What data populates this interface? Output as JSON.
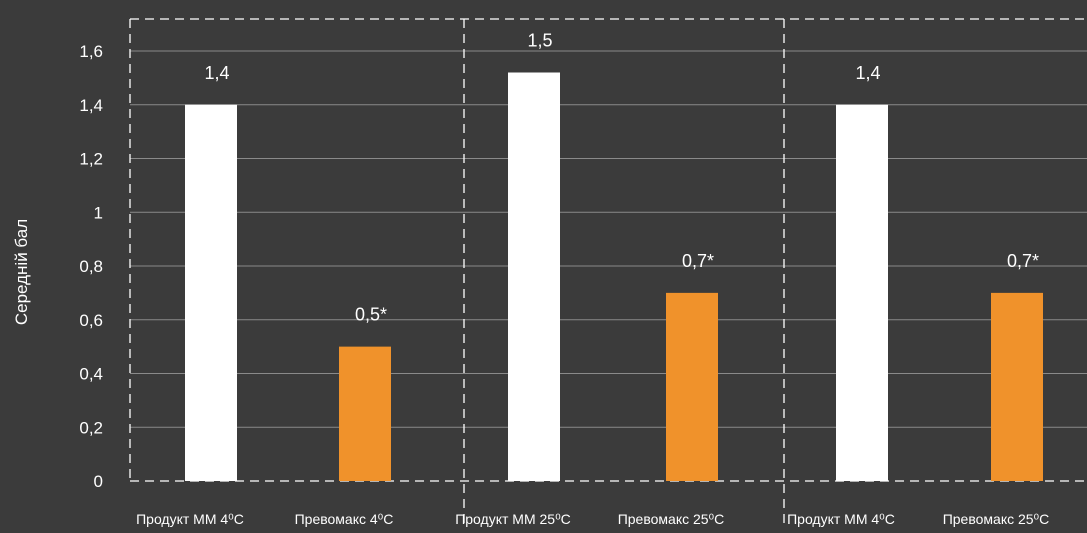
{
  "chart_data": {
    "type": "bar",
    "ylabel": "Середній бал",
    "ylim": [
      0,
      1.6
    ],
    "yticks": [
      "0",
      "0,2",
      "0,4",
      "0,6",
      "0,8",
      "1",
      "1,2",
      "1,4",
      "1,6"
    ],
    "ytick_values": [
      0,
      0.2,
      0.4,
      0.6,
      0.8,
      1.0,
      1.2,
      1.4,
      1.6
    ],
    "grid": true,
    "categories": [
      "Продукт ММ 4⁰С",
      "Превомакс 4⁰С",
      "Продукт ММ 25⁰С",
      "Превомакс 25⁰С",
      "Продукт ММ 4⁰С",
      "Превомакс 25⁰С"
    ],
    "values": [
      1.4,
      0.5,
      1.52,
      0.7,
      1.4,
      0.7
    ],
    "data_labels": [
      "1,4",
      "0,5*",
      "1,5",
      "0,7*",
      "1,4",
      "0,7*"
    ],
    "colors": [
      "#ffffff",
      "#f0922b",
      "#ffffff",
      "#f0922b",
      "#ffffff",
      "#f0922b"
    ],
    "groups": 3
  },
  "colors": {
    "background": "#3b3b3b",
    "grid": "#8a8a8a",
    "dash": "#ffffff",
    "product": "#ffffff",
    "prevomax": "#f0922b"
  }
}
